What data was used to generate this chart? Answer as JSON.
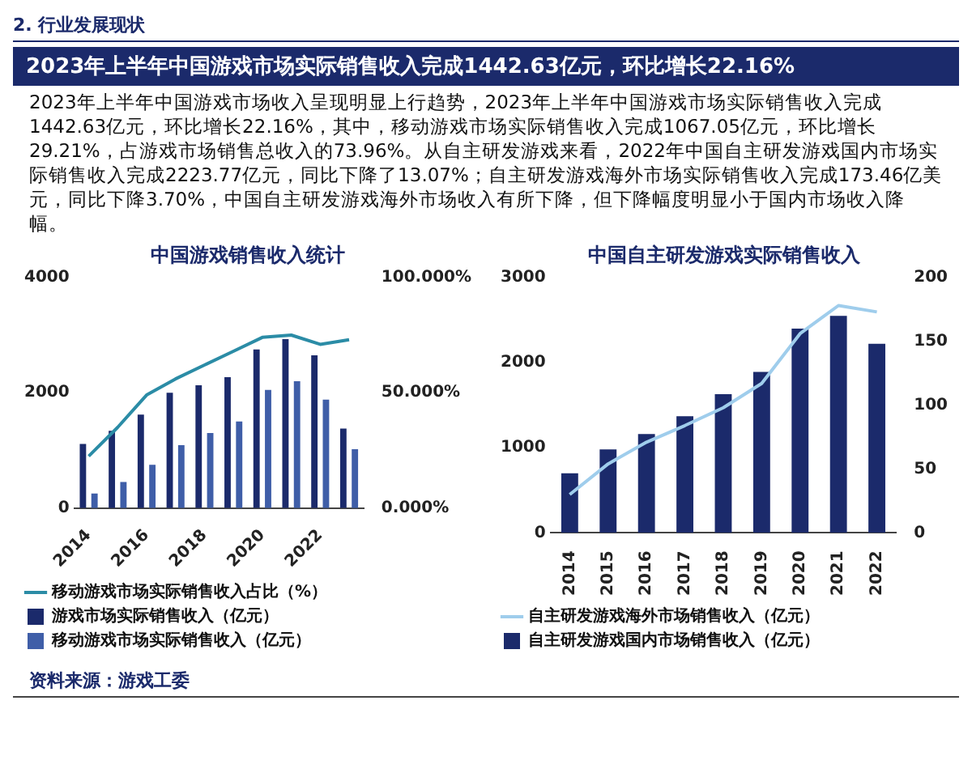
{
  "chart_data": [
    {
      "type": "other",
      "subtitle": "2. 行业发展现状",
      "title": "2023年上半年中国游戏市场实际销售收入完成1442.63亿元，环比增长22.16%",
      "annotations": [
        "2023年上半年中国游戏市场收入呈现明显上行趋势，2023年上半年中国游戏市场实际销售收入完成1442.63亿元，环比增长22.16%，其中，移动游戏市场实际销售收入完成1067.05亿元，环比增长29.21%，占游戏市场销售总收入的73.96%。从自主研发游戏来看，2022年中国自主研发游戏国内市场实际销售收入完成2223.77亿元，同比下降了13.07%；自主研发游戏海外市场实际销售收入完成173.46亿美元，同比下降3.70%，中国自主研发游戏海外市场收入有所下降，但下降幅度明显小于国内市场收入降幅。",
        "资料来源：游戏工委"
      ]
    },
    {
      "type": "bar",
      "title": "中国游戏销售收入统计",
      "categories": [
        "2014",
        null,
        "2016",
        null,
        "2018",
        null,
        "2020",
        null,
        "2022",
        null
      ],
      "series": [
        {
          "name": "游戏市场实际销售收入（亿元）",
          "color": "#1b2a6b",
          "values": [
            1110,
            1340,
            1620,
            2000,
            2130,
            2270,
            2750,
            2930,
            2650,
            1380
          ]
        },
        {
          "name": "移动游戏市场实际销售收入（亿元）",
          "color": "#3f5ea8",
          "values": [
            250,
            450,
            750,
            1090,
            1300,
            1500,
            2050,
            2200,
            1880,
            1020
          ]
        },
        {
          "name": "移动游戏市场实际销售收入占比（%）",
          "type": "line",
          "axis": "y2",
          "color": "#2b8ca6",
          "values": [
            22.5,
            35,
            49,
            56,
            62,
            68,
            74,
            75,
            71,
            73
          ]
        }
      ],
      "ylim": [
        0,
        4000
      ],
      "yticks": [
        0,
        2000,
        4000
      ],
      "y2lim": [
        0,
        100
      ],
      "y2ticks": [
        {
          "value": 0,
          "label": "0.000%"
        },
        {
          "value": 50,
          "label": "50.000%"
        },
        {
          "value": 100,
          "label": "100.000%"
        }
      ],
      "legend": "bottom",
      "marker": "none",
      "line_style": "solid",
      "grid": false
    },
    {
      "type": "bar",
      "title": "中国自主研发游戏实际销售收入",
      "categories": [
        "2014",
        "2015",
        "2016",
        "2017",
        "2018",
        "2019",
        "2020",
        "2021",
        "2022"
      ],
      "series": [
        {
          "name": "自主研发游戏国内市场销售收入（亿元）",
          "color": "#1b2a6b",
          "values": [
            700,
            980,
            1160,
            1370,
            1630,
            1890,
            2400,
            2550,
            2220
          ]
        },
        {
          "name": "自主研发游戏海外市场销售收入（亿元）",
          "type": "line",
          "axis": "y2",
          "color": "#9fcdec",
          "values": [
            30,
            54,
            71,
            84,
            98,
            117,
            156,
            178,
            173
          ]
        }
      ],
      "ylim": [
        0,
        3000
      ],
      "yticks": [
        0,
        1000,
        2000,
        3000
      ],
      "y2lim": [
        0,
        200
      ],
      "y2ticks": [
        0,
        50,
        100,
        150,
        200
      ],
      "legend": "bottom",
      "marker": "none",
      "line_style": "solid",
      "grid": false
    }
  ]
}
